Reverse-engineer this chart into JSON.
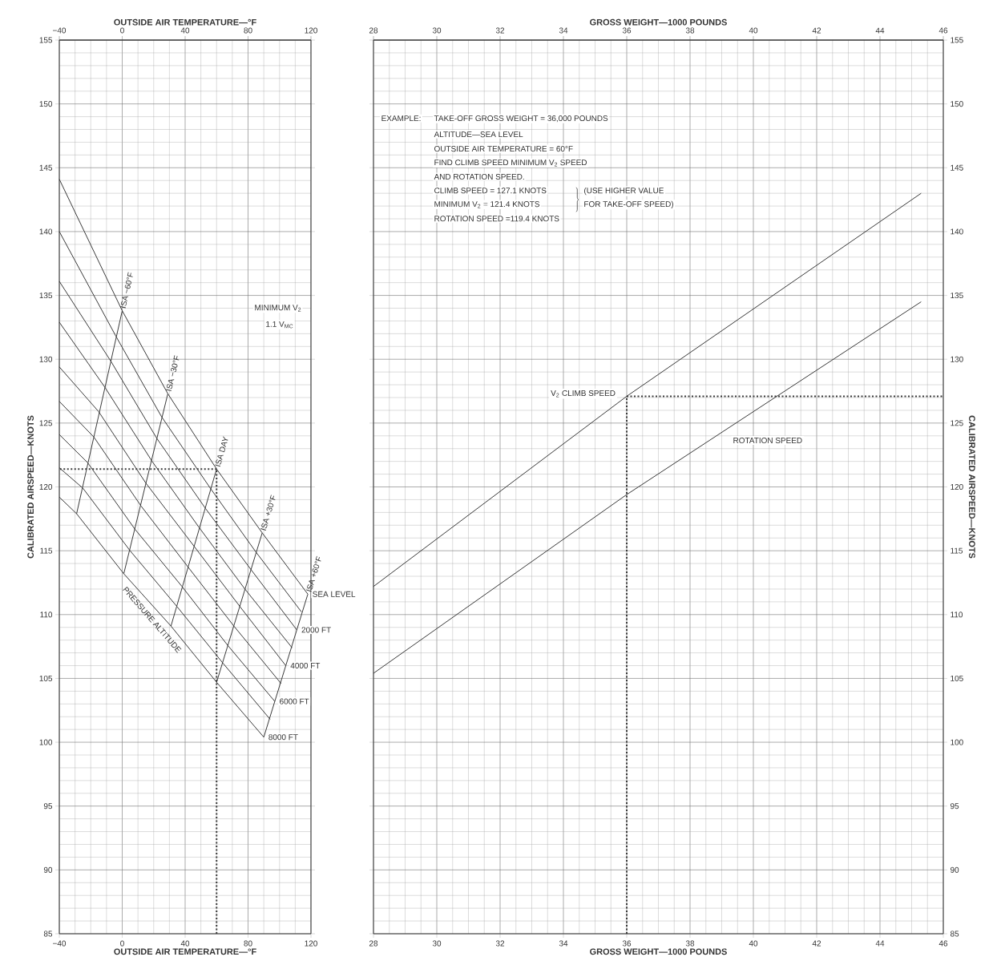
{
  "chart_data": [
    {
      "type": "line",
      "xlabel": "OUTSIDE AIR TEMPERATURE—°F",
      "x2label": "OUTSIDE AIR TEMPERATURE—°F",
      "ylabel": "CALIBRATED AIRSPEED—KNOTS",
      "xlim": [
        -40,
        120
      ],
      "xticks": [
        {
          "value": -40,
          "label": "−40"
        },
        0,
        40,
        80,
        120
      ],
      "x2lim": [
        -40,
        120
      ],
      "x2ticks": [
        {
          "value": -40,
          "label": "−40"
        },
        0,
        40,
        80,
        120
      ],
      "ylim": [
        85,
        155
      ],
      "yticks": [
        85,
        90,
        95,
        100,
        105,
        110,
        115,
        120,
        125,
        130,
        135,
        140,
        145,
        150,
        155
      ],
      "grid": true,
      "series": [
        {
          "name": "SEA LEVEL",
          "color": "#3a3a3a",
          "x": [
            -40,
            0,
            29,
            60,
            89,
            118
          ],
          "values": [
            144.1,
            133.8,
            127.3,
            121.4,
            116.4,
            111.6
          ]
        },
        {
          "color": "#3a3a3a",
          "x": [
            -40,
            -4,
            25,
            56,
            85,
            114
          ],
          "values": [
            140.0,
            131.8,
            125.5,
            119.9,
            114.9,
            110.2
          ]
        },
        {
          "name": "2000 FT",
          "color": "#3a3a3a",
          "x": [
            -40,
            -7,
            22,
            53,
            82,
            111
          ],
          "values": [
            136.1,
            129.8,
            123.8,
            118.3,
            113.5,
            108.8
          ]
        },
        {
          "color": "#3a3a3a",
          "x": [
            -40,
            -11,
            19,
            49,
            78,
            108
          ],
          "values": [
            132.9,
            127.8,
            122.0,
            116.8,
            112.0,
            107.4
          ]
        },
        {
          "name": "4000 FT",
          "color": "#3a3a3a",
          "x": [
            -40,
            -15,
            15,
            46,
            75,
            104
          ],
          "values": [
            129.4,
            125.9,
            120.3,
            115.3,
            110.6,
            106.0
          ]
        },
        {
          "color": "#3a3a3a",
          "x": [
            -40,
            -18,
            12,
            42,
            71,
            101
          ],
          "values": [
            126.7,
            123.9,
            118.5,
            113.7,
            109.1,
            104.6
          ]
        },
        {
          "name": "6000 FT",
          "color": "#3a3a3a",
          "x": [
            -40,
            -22,
            8,
            38,
            67,
            97
          ],
          "values": [
            124.1,
            121.9,
            116.7,
            112.2,
            107.6,
            103.2
          ]
        },
        {
          "color": "#3a3a3a",
          "x": [
            -40,
            -25,
            5,
            35,
            64,
            94
          ],
          "values": [
            121.5,
            119.9,
            115.0,
            110.6,
            106.2,
            101.8
          ]
        },
        {
          "name": "8000 FT",
          "color": "#3a3a3a",
          "x": [
            -40,
            -29,
            1,
            31,
            60,
            90
          ],
          "values": [
            119.2,
            117.9,
            113.2,
            109.1,
            104.7,
            100.4
          ]
        },
        {
          "name": "ISA −60°F",
          "color": "#3a3a3a",
          "x": [
            -29,
            0
          ],
          "values": [
            117.9,
            133.8
          ]
        },
        {
          "name": "ISA −30°F",
          "color": "#3a3a3a",
          "x": [
            1,
            29
          ],
          "values": [
            113.2,
            127.3
          ]
        },
        {
          "name": "ISA DAY",
          "color": "#3a3a3a",
          "x": [
            31,
            60
          ],
          "values": [
            109.1,
            121.4
          ]
        },
        {
          "name": "ISA +30°F",
          "color": "#3a3a3a",
          "x": [
            60,
            89
          ],
          "values": [
            104.7,
            116.4
          ]
        },
        {
          "name": "ISA +60°F",
          "color": "#3a3a3a",
          "x": [
            90,
            118
          ],
          "values": [
            100.4,
            111.6
          ]
        },
        {
          "color": "#3a3a3a",
          "line_style": "dotted",
          "x": [
            60,
            -40
          ],
          "values": [
            121.4,
            121.4
          ]
        },
        {
          "color": "#3a3a3a",
          "line_style": "dotted",
          "x": [
            60,
            60
          ],
          "values": [
            85,
            121.4
          ]
        }
      ],
      "annotations": [
        "MINIMUM V$_{2}$",
        "1.1 V$_{MC}$",
        "PRESSURE ALTITUDE"
      ]
    },
    {
      "type": "line",
      "xlabel": "GROSS WEIGHT—1000 POUNDS",
      "x2label": "GROSS WEIGHT—1000 POUNDS",
      "ylabel": "CALIBRATED AIRSPEED—KNOTS",
      "xlim": [
        28,
        46
      ],
      "xticks": [
        28,
        30,
        32,
        34,
        36,
        38,
        40,
        42,
        44,
        46
      ],
      "x2lim": [
        28,
        46
      ],
      "x2ticks": [
        28,
        30,
        32,
        34,
        36,
        38,
        40,
        42,
        44,
        46
      ],
      "ylim": [
        85,
        155
      ],
      "yticks": [
        85,
        90,
        95,
        100,
        105,
        110,
        115,
        120,
        125,
        130,
        135,
        140,
        145,
        150,
        155
      ],
      "grid": true,
      "series": [
        {
          "name": "V$_{2}$ CLIMB SPEED",
          "color": "#3a3a3a",
          "x": [
            28,
            36,
            45.3
          ],
          "values": [
            112.2,
            127.1,
            143.0
          ]
        },
        {
          "name": "ROTATION SPEED",
          "color": "#3a3a3a",
          "x": [
            28,
            36,
            45.3
          ],
          "values": [
            105.4,
            119.4,
            134.5
          ]
        },
        {
          "color": "#3a3a3a",
          "line_style": "dotted",
          "x": [
            36,
            36
          ],
          "values": [
            85,
            127.1
          ]
        },
        {
          "color": "#3a3a3a",
          "line_style": "dotted",
          "x": [
            36,
            46
          ],
          "values": [
            127.1,
            127.1
          ]
        }
      ],
      "annotations": [
        "EXAMPLE:",
        "TAKE-OFF GROSS WEIGHT = 36,000 POUNDS",
        "ALTITUDE—SEA LEVEL",
        "OUTSIDE AIR TEMPERATURE = 60°F",
        "FIND CLIMB SPEED MINIMUM V$_{2}$ SPEED",
        "AND ROTATION SPEED.",
        "CLIMB SPEED = 127.1 KNOTS",
        "MINIMUM V$_{2}$ = 121.4 KNOTS",
        "(USE HIGHER VALUE",
        "FOR TAKE-OFF SPEED)",
        "ROTATION SPEED =119.4 KNOTS"
      ]
    }
  ]
}
